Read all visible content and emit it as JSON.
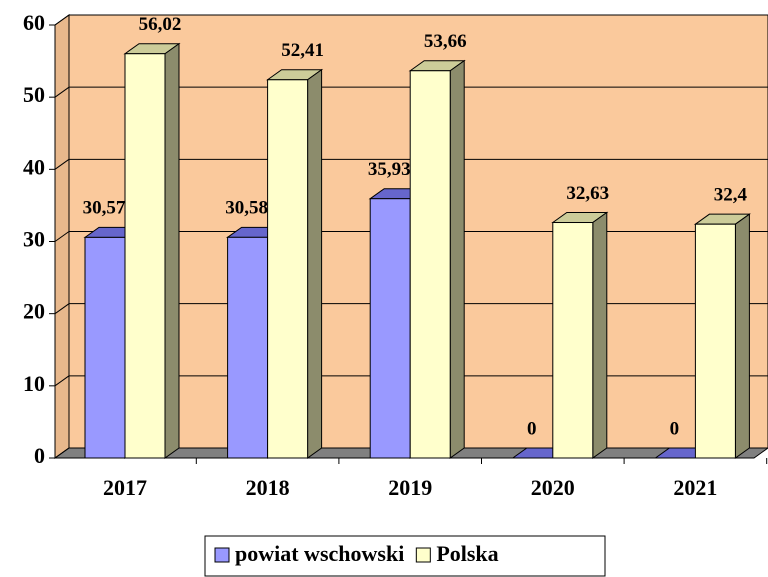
{
  "chart_data": {
    "type": "bar3d",
    "categories": [
      "2017",
      "2018",
      "2019",
      "2020",
      "2021"
    ],
    "series": [
      {
        "name": "powiat wschowski",
        "color": "#9999ff",
        "values": [
          30.57,
          30.58,
          35.93,
          0,
          0
        ],
        "value_labels": [
          "30,57",
          "30,58",
          "35,93",
          "0",
          "0"
        ]
      },
      {
        "name": "Polska",
        "color": "#ffffcc",
        "values": [
          56.02,
          52.41,
          53.66,
          32.63,
          32.4
        ],
        "value_labels": [
          "56,02",
          "52,41",
          "53,66",
          "32,63",
          "32,4"
        ]
      }
    ],
    "ylim": [
      0,
      60
    ],
    "yticks": [
      0,
      10,
      20,
      30,
      40,
      50,
      60
    ],
    "grid": true,
    "legend": "bottom"
  }
}
